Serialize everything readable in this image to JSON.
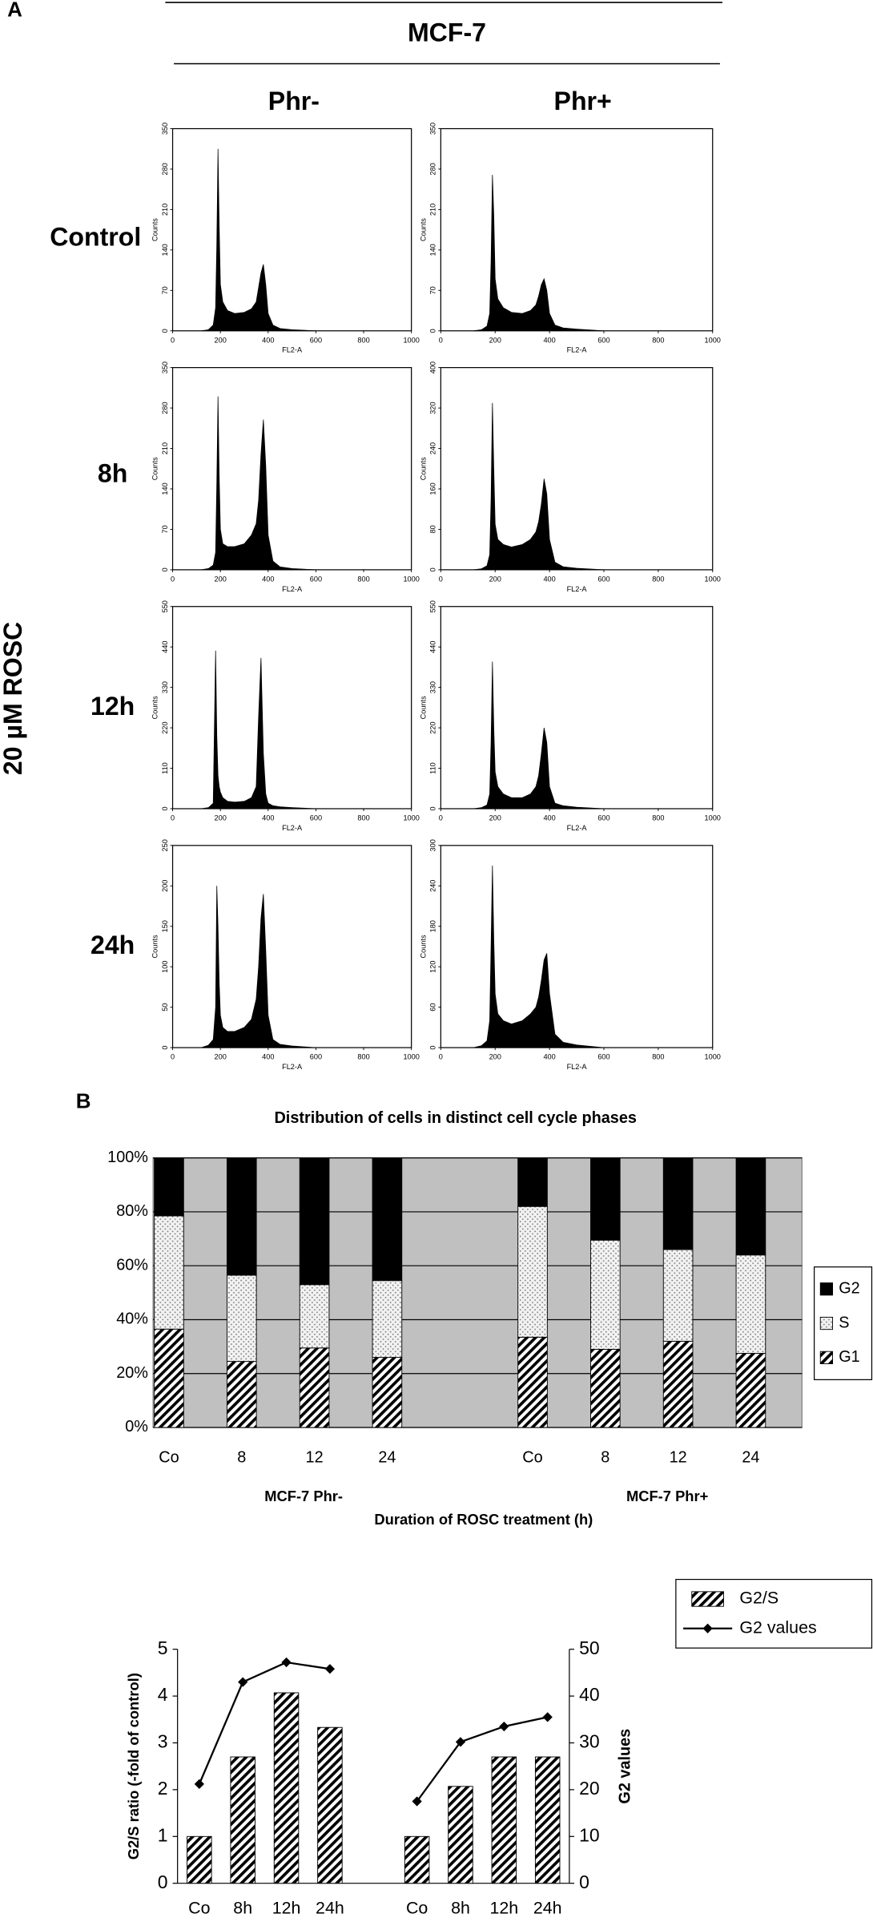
{
  "panel_labels": [
    "A",
    "B"
  ],
  "header": {
    "cell_line": "MCF-7",
    "columns": [
      "Phr-",
      "Phr+"
    ],
    "rows": [
      "Control",
      "8h",
      "12h",
      "24h"
    ],
    "treatment": "20 µM ROSC"
  },
  "chart_data": [
    {
      "type": "area",
      "xlabel": "FL2-A",
      "ylabel": "Counts",
      "color": "#000000",
      "xlim": [
        0,
        1000
      ],
      "xticks": [
        0,
        200,
        400,
        600,
        800,
        1000
      ],
      "ylim": [
        0,
        350
      ],
      "yticks": [
        0,
        70,
        140,
        210,
        280,
        350
      ],
      "x": [
        120,
        150,
        170,
        180,
        185,
        190,
        195,
        200,
        210,
        230,
        260,
        300,
        330,
        350,
        360,
        370,
        380,
        390,
        400,
        420,
        450,
        500,
        600
      ],
      "values": [
        0,
        2,
        10,
        40,
        150,
        315,
        180,
        80,
        50,
        35,
        30,
        32,
        38,
        50,
        75,
        100,
        115,
        80,
        30,
        10,
        4,
        2,
        0
      ]
    },
    {
      "type": "area",
      "xlabel": "FL2-A",
      "ylabel": "Counts",
      "color": "#000000",
      "xlim": [
        0,
        1000
      ],
      "xticks": [
        0,
        200,
        400,
        600,
        800,
        1000
      ],
      "ylim": [
        0,
        350
      ],
      "yticks": [
        0,
        70,
        140,
        210,
        280,
        350
      ],
      "x": [
        120,
        150,
        170,
        180,
        185,
        190,
        195,
        200,
        210,
        230,
        260,
        300,
        330,
        350,
        360,
        370,
        380,
        390,
        400,
        420,
        450,
        500,
        600
      ],
      "values": [
        0,
        2,
        8,
        30,
        120,
        270,
        200,
        90,
        55,
        40,
        32,
        30,
        35,
        45,
        60,
        80,
        90,
        70,
        30,
        10,
        5,
        3,
        0
      ]
    },
    {
      "type": "area",
      "xlabel": "FL2-A",
      "ylabel": "Counts",
      "color": "#000000",
      "xlim": [
        0,
        1000
      ],
      "xticks": [
        0,
        200,
        400,
        600,
        800,
        1000
      ],
      "ylim": [
        0,
        350
      ],
      "yticks": [
        0,
        70,
        140,
        210,
        280,
        350
      ],
      "x": [
        120,
        150,
        170,
        180,
        185,
        190,
        195,
        200,
        210,
        230,
        260,
        300,
        330,
        350,
        360,
        370,
        380,
        390,
        400,
        420,
        450,
        500,
        600
      ],
      "values": [
        0,
        2,
        8,
        30,
        150,
        300,
        160,
        70,
        45,
        40,
        40,
        45,
        60,
        80,
        120,
        200,
        260,
        180,
        60,
        15,
        5,
        2,
        0
      ]
    },
    {
      "type": "area",
      "xlabel": "FL2-A",
      "ylabel": "Counts",
      "color": "#000000",
      "xlim": [
        0,
        1000
      ],
      "xticks": [
        0,
        200,
        400,
        600,
        800,
        1000
      ],
      "ylim": [
        0,
        400
      ],
      "yticks": [
        0,
        80,
        160,
        240,
        320,
        400
      ],
      "x": [
        120,
        150,
        170,
        180,
        185,
        190,
        195,
        200,
        210,
        230,
        260,
        300,
        330,
        350,
        360,
        370,
        380,
        390,
        400,
        420,
        450,
        500,
        600
      ],
      "values": [
        0,
        2,
        8,
        30,
        140,
        330,
        200,
        90,
        60,
        50,
        45,
        50,
        60,
        75,
        95,
        130,
        180,
        150,
        60,
        15,
        6,
        3,
        0
      ]
    },
    {
      "type": "area",
      "xlabel": "FL2-A",
      "ylabel": "Counts",
      "color": "#000000",
      "xlim": [
        0,
        1000
      ],
      "xticks": [
        0,
        200,
        400,
        600,
        800,
        1000
      ],
      "ylim": [
        0,
        550
      ],
      "yticks": [
        0,
        110,
        220,
        330,
        440,
        550
      ],
      "x": [
        120,
        150,
        170,
        180,
        185,
        190,
        195,
        200,
        210,
        230,
        260,
        300,
        330,
        350,
        360,
        370,
        380,
        390,
        400,
        420,
        450,
        500,
        600
      ],
      "values": [
        0,
        3,
        15,
        430,
        200,
        90,
        60,
        45,
        30,
        20,
        18,
        20,
        30,
        60,
        250,
        410,
        150,
        40,
        15,
        8,
        5,
        3,
        0
      ]
    },
    {
      "type": "area",
      "xlabel": "FL2-A",
      "ylabel": "Counts",
      "color": "#000000",
      "xlim": [
        0,
        1000
      ],
      "xticks": [
        0,
        200,
        400,
        600,
        800,
        1000
      ],
      "ylim": [
        0,
        550
      ],
      "yticks": [
        0,
        110,
        220,
        330,
        440,
        550
      ],
      "x": [
        120,
        150,
        170,
        180,
        185,
        190,
        195,
        200,
        210,
        230,
        260,
        300,
        330,
        350,
        360,
        370,
        380,
        390,
        400,
        420,
        450,
        500,
        600
      ],
      "values": [
        0,
        3,
        10,
        40,
        180,
        400,
        220,
        100,
        60,
        40,
        30,
        30,
        40,
        60,
        90,
        150,
        220,
        180,
        60,
        15,
        8,
        4,
        0
      ]
    },
    {
      "type": "area",
      "xlabel": "FL2-A",
      "ylabel": "Counts",
      "color": "#000000",
      "xlim": [
        0,
        1000
      ],
      "xticks": [
        0,
        200,
        400,
        600,
        800,
        1000
      ],
      "ylim": [
        0,
        250
      ],
      "yticks": [
        0,
        50,
        100,
        150,
        200,
        250
      ],
      "x": [
        120,
        150,
        170,
        180,
        185,
        190,
        195,
        200,
        210,
        230,
        260,
        300,
        330,
        350,
        360,
        370,
        380,
        390,
        400,
        420,
        450,
        500,
        600
      ],
      "values": [
        0,
        3,
        10,
        50,
        200,
        150,
        80,
        40,
        25,
        20,
        20,
        25,
        35,
        60,
        100,
        160,
        190,
        120,
        40,
        10,
        4,
        2,
        0
      ]
    },
    {
      "type": "area",
      "xlabel": "FL2-A",
      "ylabel": "Counts",
      "color": "#000000",
      "xlim": [
        0,
        1000
      ],
      "xticks": [
        0,
        200,
        400,
        600,
        800,
        1000
      ],
      "ylim": [
        0,
        300
      ],
      "yticks": [
        0,
        60,
        120,
        180,
        240,
        300
      ],
      "x": [
        120,
        150,
        170,
        180,
        185,
        190,
        195,
        200,
        210,
        230,
        260,
        300,
        330,
        350,
        360,
        370,
        380,
        390,
        400,
        420,
        450,
        500,
        600
      ],
      "values": [
        0,
        3,
        10,
        40,
        150,
        270,
        160,
        80,
        50,
        40,
        35,
        40,
        50,
        60,
        75,
        100,
        130,
        140,
        80,
        20,
        8,
        4,
        0
      ]
    },
    {
      "type": "stacked_bar",
      "title": "Distribution of cells in distinct cell cycle phases",
      "xlabel": "Duration of ROSC treatment (h)",
      "group_labels": [
        "MCF-7 Phr-",
        "MCF-7 Phr+"
      ],
      "categories": [
        "Co",
        "8",
        "12",
        "24",
        null,
        "Co",
        "8",
        "12",
        "24"
      ],
      "series": [
        {
          "name": "G1",
          "color": "#000000",
          "pattern": "diagonal",
          "values": [
            36.5,
            24.5,
            29.5,
            26,
            null,
            33.5,
            29,
            32,
            27.5
          ]
        },
        {
          "name": "S",
          "color": "#808080",
          "pattern": "dots",
          "values": [
            42,
            32,
            23.5,
            28.5,
            null,
            48.5,
            40.5,
            34,
            36.5
          ]
        },
        {
          "name": "G2",
          "color": "#000000",
          "pattern": "solid",
          "values": [
            21.5,
            43.5,
            47,
            45.5,
            null,
            18,
            30.5,
            34,
            36
          ]
        }
      ],
      "ylim": [
        0,
        100
      ],
      "yticks": [
        {
          "value": 0,
          "label": "0%"
        },
        {
          "value": 20,
          "label": "20%"
        },
        {
          "value": 40,
          "label": "40%"
        },
        {
          "value": 60,
          "label": "60%"
        },
        {
          "value": 80,
          "label": "80%"
        },
        {
          "value": 100,
          "label": "100%"
        }
      ],
      "grid": true,
      "background": "#c0c0c0",
      "legend": "right"
    },
    {
      "type": "bar_line",
      "ylabel": "G2/S ratio (-fold of control)",
      "y2label": "G2 values",
      "categories": [
        "Co",
        "8h",
        "12h",
        "24h",
        null,
        "Co",
        "8h",
        "12h",
        "24h"
      ],
      "series": [
        {
          "name": "G2/S",
          "type": "bar",
          "color": "#000000",
          "pattern": "diagonal",
          "values": [
            1,
            2.7,
            4.07,
            3.33,
            null,
            1,
            2.07,
            2.7,
            2.7
          ]
        },
        {
          "name": "G2 values",
          "type": "line",
          "axis": "y2",
          "color": "#000000",
          "values": [
            21.2,
            43,
            47.2,
            45.8,
            null,
            17.5,
            30.2,
            33.5,
            35.5
          ]
        }
      ],
      "ylim": [
        0,
        5
      ],
      "yticks": [
        0,
        1,
        2,
        3,
        4,
        5
      ],
      "y2lim": [
        0,
        50
      ],
      "y2ticks": [
        0,
        10,
        20,
        30,
        40,
        50
      ],
      "grid": false,
      "legend": "right"
    }
  ]
}
